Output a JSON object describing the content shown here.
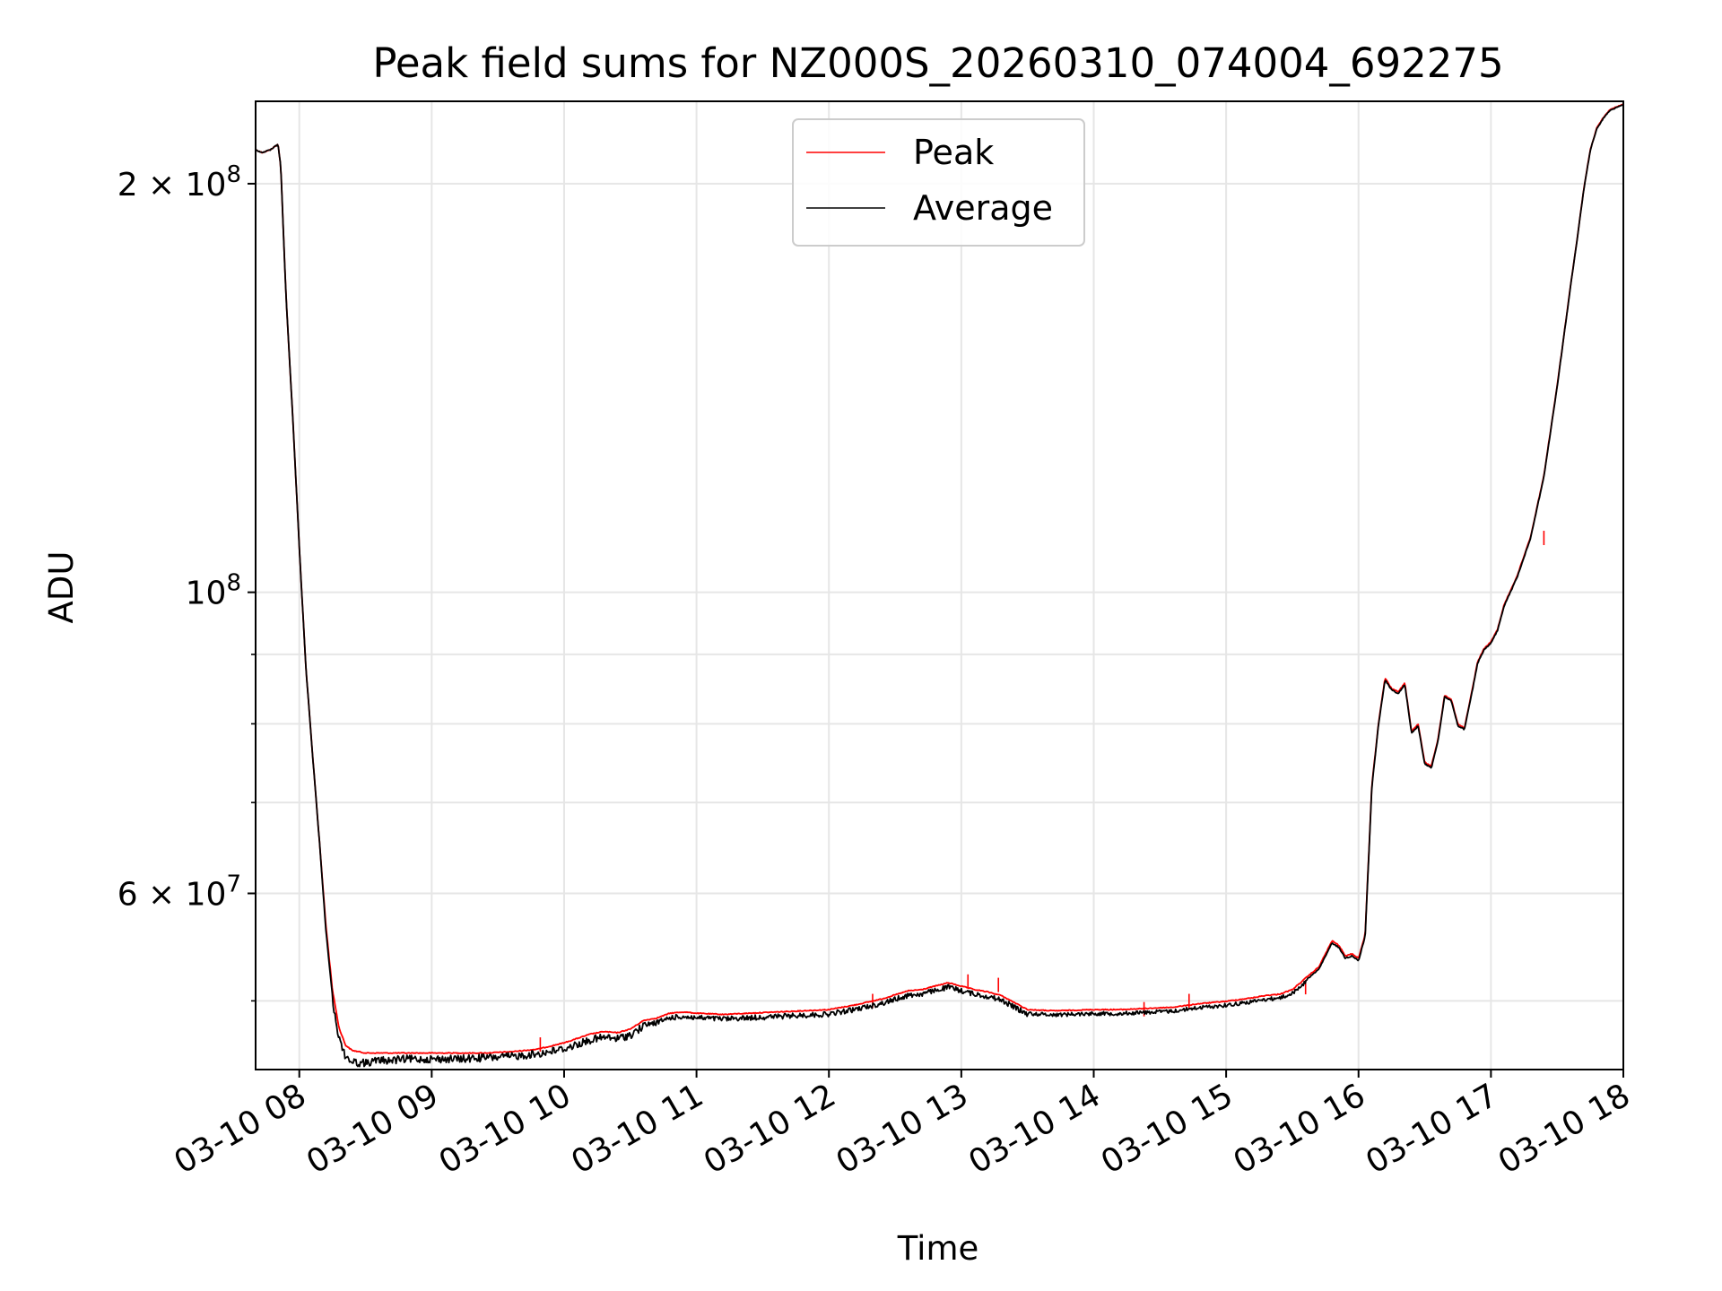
{
  "chart_data": {
    "type": "line",
    "title": "Peak field sums for NZ000S_20260310_074004_692275",
    "xlabel": "Time",
    "ylabel": "ADU",
    "yscale": "log",
    "xlim": [
      7.67,
      18.0
    ],
    "ylim": [
      44500000,
      230000000
    ],
    "grid": true,
    "legend_position": "upper center",
    "x_ticks": [
      {
        "value": 8,
        "label": "03-10 08"
      },
      {
        "value": 9,
        "label": "03-10 09"
      },
      {
        "value": 10,
        "label": "03-10 10"
      },
      {
        "value": 11,
        "label": "03-10 11"
      },
      {
        "value": 12,
        "label": "03-10 12"
      },
      {
        "value": 13,
        "label": "03-10 13"
      },
      {
        "value": 14,
        "label": "03-10 14"
      },
      {
        "value": 15,
        "label": "03-10 15"
      },
      {
        "value": 16,
        "label": "03-10 16"
      },
      {
        "value": 17,
        "label": "03-10 17"
      },
      {
        "value": 18,
        "label": "03-10 18"
      }
    ],
    "y_major_ticks": [
      {
        "value": 60000000,
        "mantissa": "6",
        "base": "10",
        "exp": "7",
        "times": "×"
      },
      {
        "value": 100000000,
        "mantissa": "",
        "base": "10",
        "exp": "8",
        "times": ""
      },
      {
        "value": 200000000,
        "mantissa": "2",
        "base": "10",
        "exp": "8",
        "times": "×"
      }
    ],
    "y_minor_ticks": [
      50000000,
      70000000,
      80000000,
      90000000
    ],
    "series": [
      {
        "name": "Peak",
        "color": "#ff0000",
        "x": [
          7.67,
          7.72,
          7.78,
          7.84,
          7.86,
          7.9,
          7.95,
          8.0,
          8.05,
          8.1,
          8.15,
          8.2,
          8.25,
          8.3,
          8.35,
          8.4,
          8.45,
          8.5,
          8.55,
          8.6,
          8.7,
          8.8,
          9.0,
          9.2,
          9.4,
          9.6,
          9.8,
          10.0,
          10.2,
          10.3,
          10.4,
          10.5,
          10.6,
          10.7,
          10.8,
          10.9,
          11.0,
          11.2,
          11.4,
          11.6,
          11.8,
          12.0,
          12.2,
          12.4,
          12.6,
          12.7,
          12.8,
          12.9,
          13.0,
          13.1,
          13.2,
          13.3,
          13.4,
          13.5,
          13.7,
          14.0,
          14.2,
          14.4,
          14.6,
          14.8,
          15.0,
          15.2,
          15.3,
          15.4,
          15.5,
          15.6,
          15.7,
          15.8,
          15.85,
          15.9,
          15.95,
          16.0,
          16.05,
          16.1,
          16.15,
          16.2,
          16.25,
          16.3,
          16.35,
          16.4,
          16.45,
          16.5,
          16.55,
          16.6,
          16.65,
          16.7,
          16.75,
          16.8,
          16.85,
          16.9,
          16.95,
          17.0,
          17.05,
          17.1,
          17.2,
          17.3,
          17.4,
          17.5,
          17.6,
          17.65,
          17.7,
          17.75,
          17.8,
          17.85,
          17.9,
          17.95,
          18.0
        ],
        "values": [
          212000000,
          211000000,
          212000000,
          214000000,
          206000000,
          165000000,
          135000000,
          108000000,
          88000000,
          76000000,
          66000000,
          57000000,
          51000000,
          47800000,
          46400000,
          46000000,
          45900000,
          45800000,
          45800000,
          45800000,
          45800000,
          45800000,
          45800000,
          45800000,
          45800000,
          45900000,
          46100000,
          46600000,
          47300000,
          47500000,
          47400000,
          47700000,
          48400000,
          48600000,
          49000000,
          49100000,
          49000000,
          48900000,
          49000000,
          49100000,
          49200000,
          49300000,
          49700000,
          50200000,
          50900000,
          51000000,
          51300000,
          51600000,
          51300000,
          51000000,
          50800000,
          50500000,
          49900000,
          49300000,
          49200000,
          49300000,
          49300000,
          49400000,
          49500000,
          49800000,
          50000000,
          50300000,
          50500000,
          50600000,
          51000000,
          52000000,
          53000000,
          55400000,
          55000000,
          54000000,
          54200000,
          53800000,
          56000000,
          72000000,
          80000000,
          86500000,
          85000000,
          84500000,
          85800000,
          79000000,
          80000000,
          75000000,
          74500000,
          78000000,
          84000000,
          83500000,
          80000000,
          79500000,
          84000000,
          89000000,
          91000000,
          92000000,
          94000000,
          98000000,
          103000000,
          110000000,
          122000000,
          142000000,
          168000000,
          182000000,
          198000000,
          212000000,
          220000000,
          224000000,
          227000000,
          228000000,
          229000000
        ],
        "markers": [
          {
            "x": 9.82,
            "value": 47000000
          },
          {
            "x": 12.33,
            "value": 50600000
          },
          {
            "x": 13.05,
            "value": 52300000
          },
          {
            "x": 13.28,
            "value": 52000000
          },
          {
            "x": 14.38,
            "value": 49900000
          },
          {
            "x": 14.72,
            "value": 50600000
          },
          {
            "x": 15.6,
            "value": 51800000
          },
          {
            "x": 17.4,
            "value": 111000000
          }
        ]
      },
      {
        "name": "Average",
        "color": "#000000",
        "x": [
          7.67,
          7.72,
          7.78,
          7.84,
          7.86,
          7.9,
          7.95,
          8.0,
          8.05,
          8.1,
          8.15,
          8.2,
          8.25,
          8.3,
          8.35,
          8.4,
          8.45,
          8.5,
          8.55,
          8.6,
          8.7,
          8.8,
          9.0,
          9.2,
          9.4,
          9.6,
          9.8,
          10.0,
          10.2,
          10.3,
          10.4,
          10.5,
          10.6,
          10.7,
          10.8,
          10.9,
          11.0,
          11.2,
          11.4,
          11.6,
          11.8,
          12.0,
          12.2,
          12.4,
          12.6,
          12.7,
          12.8,
          12.9,
          13.0,
          13.1,
          13.2,
          13.3,
          13.4,
          13.5,
          13.7,
          14.0,
          14.2,
          14.4,
          14.6,
          14.8,
          15.0,
          15.2,
          15.3,
          15.4,
          15.5,
          15.6,
          15.7,
          15.8,
          15.85,
          15.9,
          15.95,
          16.0,
          16.05,
          16.1,
          16.15,
          16.2,
          16.25,
          16.3,
          16.35,
          16.4,
          16.45,
          16.5,
          16.55,
          16.6,
          16.65,
          16.7,
          16.75,
          16.8,
          16.85,
          16.9,
          16.95,
          17.0,
          17.05,
          17.1,
          17.2,
          17.3,
          17.4,
          17.5,
          17.6,
          17.65,
          17.7,
          17.75,
          17.8,
          17.85,
          17.9,
          17.95,
          18.0
        ],
        "values": [
          212000000,
          211000000,
          212000000,
          214000000,
          206000000,
          165000000,
          135000000,
          108000000,
          88000000,
          76000000,
          66000000,
          56500000,
          50500000,
          47200000,
          45800000,
          45400000,
          45300000,
          45300000,
          45400000,
          45500000,
          45500000,
          45600000,
          45600000,
          45600000,
          45700000,
          45800000,
          46000000,
          46400000,
          47100000,
          47300000,
          47200000,
          47500000,
          48200000,
          48400000,
          48800000,
          48900000,
          48800000,
          48700000,
          48800000,
          48900000,
          49000000,
          49100000,
          49500000,
          50000000,
          50700000,
          50800000,
          51100000,
          51400000,
          51100000,
          50800000,
          50600000,
          50300000,
          49700000,
          49100000,
          49000000,
          49100000,
          49100000,
          49200000,
          49300000,
          49600000,
          49800000,
          50100000,
          50300000,
          50400000,
          50800000,
          51800000,
          52800000,
          55200000,
          54800000,
          53800000,
          54000000,
          53600000,
          55800000,
          71800000,
          79800000,
          86300000,
          84800000,
          84300000,
          85600000,
          78800000,
          79800000,
          74800000,
          74300000,
          77800000,
          83800000,
          83300000,
          79800000,
          79300000,
          83800000,
          88800000,
          90800000,
          91800000,
          93800000,
          97800000,
          102800000,
          109800000,
          121800000,
          141800000,
          167800000,
          181800000,
          197800000,
          211800000,
          219800000,
          223800000,
          226800000,
          227800000,
          228800000
        ],
        "noise_range": [
          [
            8.25,
            10.6,
            0.006
          ],
          [
            10.6,
            13.5,
            0.004
          ],
          [
            13.5,
            15.6,
            0.003
          ]
        ]
      }
    ]
  }
}
